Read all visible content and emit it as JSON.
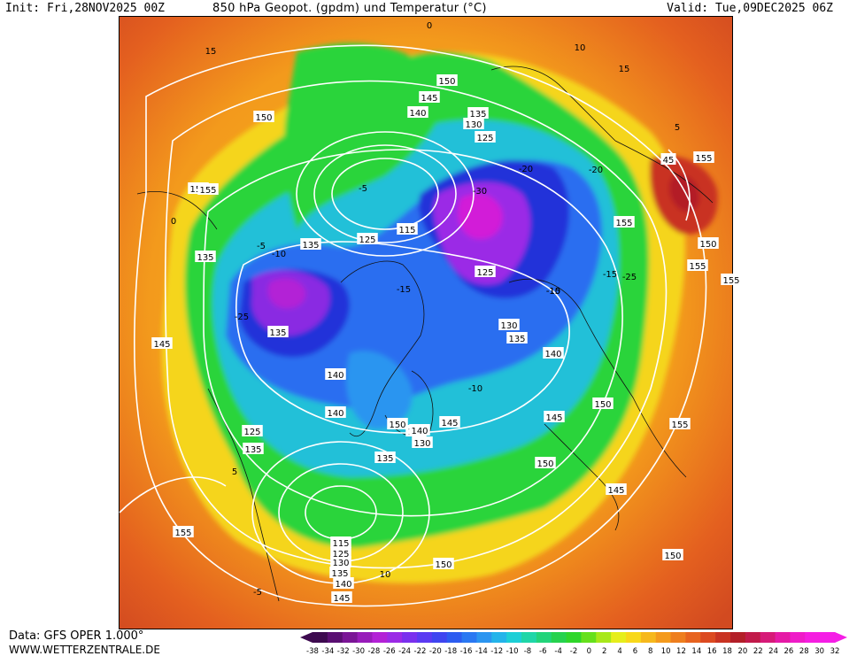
{
  "header": {
    "init": "Init: Fri,28NOV2025 00Z",
    "title": "850 hPa Geopot. (gpdm) und Temperatur (°C)",
    "valid": "Valid: Tue,09DEC2025 06Z"
  },
  "footer": {
    "data_source": "Data: GFS OPER 1.000°",
    "website": "WWW.WETTERZENTRALE.DE"
  },
  "colors": {
    "warm_outer": "#d94f1c",
    "orange": "#f39a1c",
    "yellow": "#f5e11a",
    "green": "#22d13a",
    "teal": "#1fc9b2",
    "blue": "#2a6ef0",
    "deep_blue": "#2433d9",
    "violet": "#8a2be2",
    "magenta": "#d21cd8",
    "contour": "#ffffff"
  },
  "legend": {
    "unit": "°C",
    "ticks": [
      "-38",
      "-34",
      "-32",
      "-30",
      "-28",
      "-26",
      "-24",
      "-22",
      "-20",
      "-18",
      "-16",
      "-14",
      "-12",
      "-10",
      "-8",
      "-6",
      "-4",
      "-2",
      "0",
      "2",
      "4",
      "6",
      "8",
      "10",
      "12",
      "14",
      "16",
      "18",
      "20",
      "22",
      "24",
      "26",
      "28",
      "30",
      "32"
    ],
    "colors": [
      "#3d0a4f",
      "#5a0f72",
      "#7a1596",
      "#981cba",
      "#b321d6",
      "#9b2ae6",
      "#7a30ee",
      "#5b3af2",
      "#3f45f0",
      "#2d5cf0",
      "#2a78f2",
      "#2b95f0",
      "#23b4ea",
      "#1ccfd6",
      "#1fd6a8",
      "#22d47a",
      "#26d24e",
      "#2fd62a",
      "#66e01c",
      "#a8e81a",
      "#e6ee1c",
      "#f8d81a",
      "#f6b81c",
      "#f49a1c",
      "#ee7e1e",
      "#e7631f",
      "#dc4a20",
      "#c93322",
      "#b31f28",
      "#c11a4a",
      "#d61a78",
      "#e51aa6",
      "#ef1cc8",
      "#f51ee0",
      "#f51ee6"
    ]
  },
  "geopotential_labels": [
    {
      "text": "150"
    },
    {
      "text": "145"
    },
    {
      "text": "140"
    },
    {
      "text": "135"
    },
    {
      "text": "130"
    },
    {
      "text": "125"
    },
    {
      "text": "115"
    },
    {
      "text": "155"
    },
    {
      "text": "150"
    },
    {
      "text": "155"
    },
    {
      "text": "135"
    },
    {
      "text": "135"
    },
    {
      "text": "145"
    },
    {
      "text": "135"
    },
    {
      "text": "125"
    },
    {
      "text": "130"
    },
    {
      "text": "135"
    },
    {
      "text": "140"
    },
    {
      "text": "140"
    },
    {
      "text": "140"
    },
    {
      "text": "140"
    },
    {
      "text": "125"
    },
    {
      "text": "135"
    },
    {
      "text": "135"
    },
    {
      "text": "150"
    },
    {
      "text": "140"
    },
    {
      "text": "130"
    },
    {
      "text": "145"
    },
    {
      "text": "145"
    },
    {
      "text": "125"
    },
    {
      "text": "150"
    },
    {
      "text": "155"
    },
    {
      "text": "150"
    },
    {
      "text": "155"
    },
    {
      "text": "155"
    },
    {
      "text": "150"
    },
    {
      "text": "145"
    },
    {
      "text": "155"
    },
    {
      "text": "150"
    },
    {
      "text": "150"
    },
    {
      "text": "145"
    },
    {
      "text": "140"
    },
    {
      "text": "135"
    },
    {
      "text": "130"
    },
    {
      "text": "125"
    },
    {
      "text": "115"
    },
    {
      "text": "155"
    },
    {
      "text": "45"
    },
    {
      "text": "155"
    }
  ],
  "isotherm_labels": [
    {
      "text": "-15"
    },
    {
      "text": "-10"
    },
    {
      "text": "-5"
    },
    {
      "text": "0"
    },
    {
      "text": "-5"
    },
    {
      "text": "-10"
    },
    {
      "text": "-15"
    },
    {
      "text": "-20"
    },
    {
      "text": "-25"
    },
    {
      "text": "-30"
    },
    {
      "text": "-25"
    },
    {
      "text": "-20"
    },
    {
      "text": "-15"
    },
    {
      "text": "-10"
    },
    {
      "text": "5"
    },
    {
      "text": "10"
    },
    {
      "text": "15"
    },
    {
      "text": "-5"
    },
    {
      "text": "0"
    },
    {
      "text": "5"
    },
    {
      "text": "10"
    },
    {
      "text": "15"
    }
  ]
}
